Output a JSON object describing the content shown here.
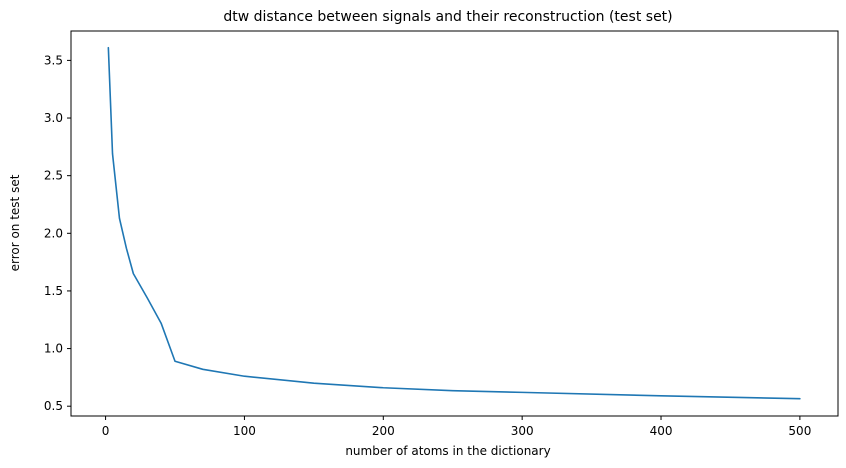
{
  "chart_data": {
    "type": "line",
    "title": "dtw distance between signals and their reconstruction (test set)",
    "xlabel": "number of atoms in the dictionary",
    "ylabel": "error on test set",
    "xlim": [
      -24.9,
      527.45
    ],
    "ylim": [
      0.415,
      3.755
    ],
    "xticks": [
      0,
      100,
      200,
      300,
      400,
      500
    ],
    "xtick_labels": [
      "0",
      "100",
      "200",
      "300",
      "400",
      "500"
    ],
    "yticks": [
      0.5,
      1.0,
      1.5,
      2.0,
      2.5,
      3.0,
      3.5
    ],
    "ytick_labels": [
      "0.5",
      "1.0",
      "1.5",
      "2.0",
      "2.5",
      "3.0",
      "3.5"
    ],
    "grid": false,
    "series": [
      {
        "color": "#1f77b4",
        "x": [
          2,
          5,
          10,
          15,
          20,
          30,
          40,
          50,
          70,
          100,
          150,
          200,
          250,
          300,
          400,
          500
        ],
        "y": [
          3.61,
          2.69,
          2.13,
          1.87,
          1.65,
          1.44,
          1.22,
          0.89,
          0.82,
          0.76,
          0.7,
          0.66,
          0.635,
          0.62,
          0.59,
          0.565
        ]
      }
    ]
  }
}
